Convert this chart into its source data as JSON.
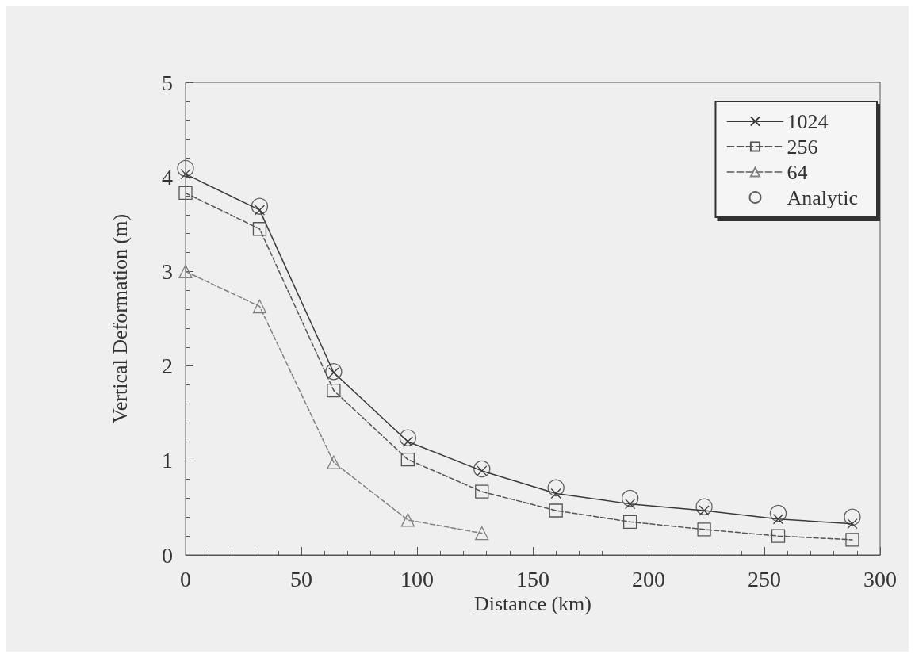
{
  "chart_data": {
    "type": "line",
    "xlabel": "Distance (km)",
    "ylabel": "Vertical Deformation (m)",
    "x": [
      0,
      32,
      64,
      96,
      128,
      160,
      192,
      224,
      256,
      288
    ],
    "series": [
      {
        "name": "1024",
        "color": "#3a3a3a",
        "marker": "cross",
        "line_style": "solid",
        "values": [
          4.03,
          3.65,
          1.93,
          1.2,
          0.89,
          0.65,
          0.54,
          0.47,
          0.38,
          0.33
        ]
      },
      {
        "name": "256",
        "color": "#555555",
        "marker": "square",
        "line_style": "dashed",
        "values": [
          3.83,
          3.45,
          1.74,
          1.01,
          0.67,
          0.47,
          0.35,
          0.27,
          0.2,
          0.16
        ]
      },
      {
        "name": "64",
        "color": "#808080",
        "marker": "triangle",
        "line_style": "dashed",
        "x": [
          0,
          32,
          64,
          96,
          128
        ],
        "values": [
          3.0,
          2.63,
          0.98,
          0.37,
          0.23
        ]
      },
      {
        "name": "Analytic",
        "color": "#3a3a3a",
        "type": "scatter",
        "marker": "circle",
        "values": [
          4.09,
          3.69,
          1.94,
          1.24,
          0.91,
          0.71,
          0.6,
          0.51,
          0.44,
          0.4
        ]
      }
    ],
    "xlim": [
      0,
      300
    ],
    "xticks": [
      0,
      50,
      100,
      150,
      200,
      250,
      300
    ],
    "ylim": [
      0,
      5
    ],
    "yticks": [
      0,
      1,
      2,
      3,
      4,
      5
    ],
    "grid": false,
    "legend": "top right"
  }
}
